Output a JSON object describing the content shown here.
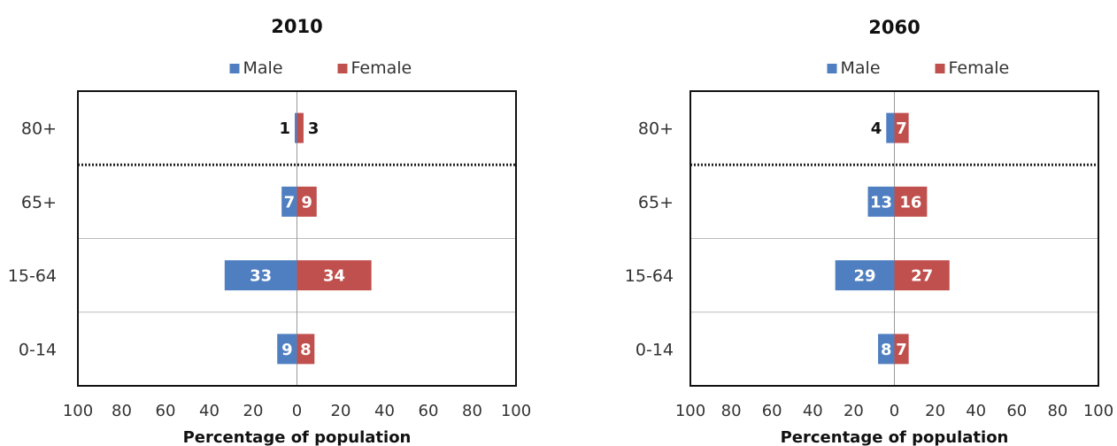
{
  "colors": {
    "male": "#4f7fc0",
    "female": "#c0504d"
  },
  "chart_data": [
    {
      "type": "bar",
      "orientation": "horizontal-diverging",
      "title": "2010",
      "xlabel": "Percentage of population",
      "xlim": [
        -100,
        100
      ],
      "ticks": [
        "100",
        "80",
        "60",
        "40",
        "20",
        "0",
        "20",
        "40",
        "60",
        "80",
        "100"
      ],
      "legend_position": "top-center",
      "categories": [
        "80+",
        "65+",
        "15-64",
        "0-14"
      ],
      "series": [
        {
          "name": "Male",
          "values": [
            1,
            7,
            33,
            9
          ],
          "labels": [
            "1",
            "7",
            "33",
            "9"
          ]
        },
        {
          "name": "Female",
          "values": [
            3,
            9,
            34,
            8
          ],
          "labels": [
            "3",
            "9",
            "34",
            "8"
          ]
        }
      ]
    },
    {
      "type": "bar",
      "orientation": "horizontal-diverging",
      "title": "2060",
      "xlabel": "Percentage of population",
      "xlim": [
        -100,
        100
      ],
      "ticks": [
        "100",
        "80",
        "60",
        "40",
        "20",
        "0",
        "20",
        "40",
        "60",
        "80",
        "100"
      ],
      "legend_position": "top-center",
      "categories": [
        "80+",
        "65+",
        "15-64",
        "0-14"
      ],
      "series": [
        {
          "name": "Male",
          "values": [
            4,
            13,
            29,
            8
          ],
          "labels": [
            "4",
            "13",
            "29",
            "8"
          ]
        },
        {
          "name": "Female",
          "values": [
            7,
            16,
            27,
            7
          ],
          "labels": [
            "7",
            "16",
            "27",
            "7"
          ]
        }
      ]
    }
  ]
}
